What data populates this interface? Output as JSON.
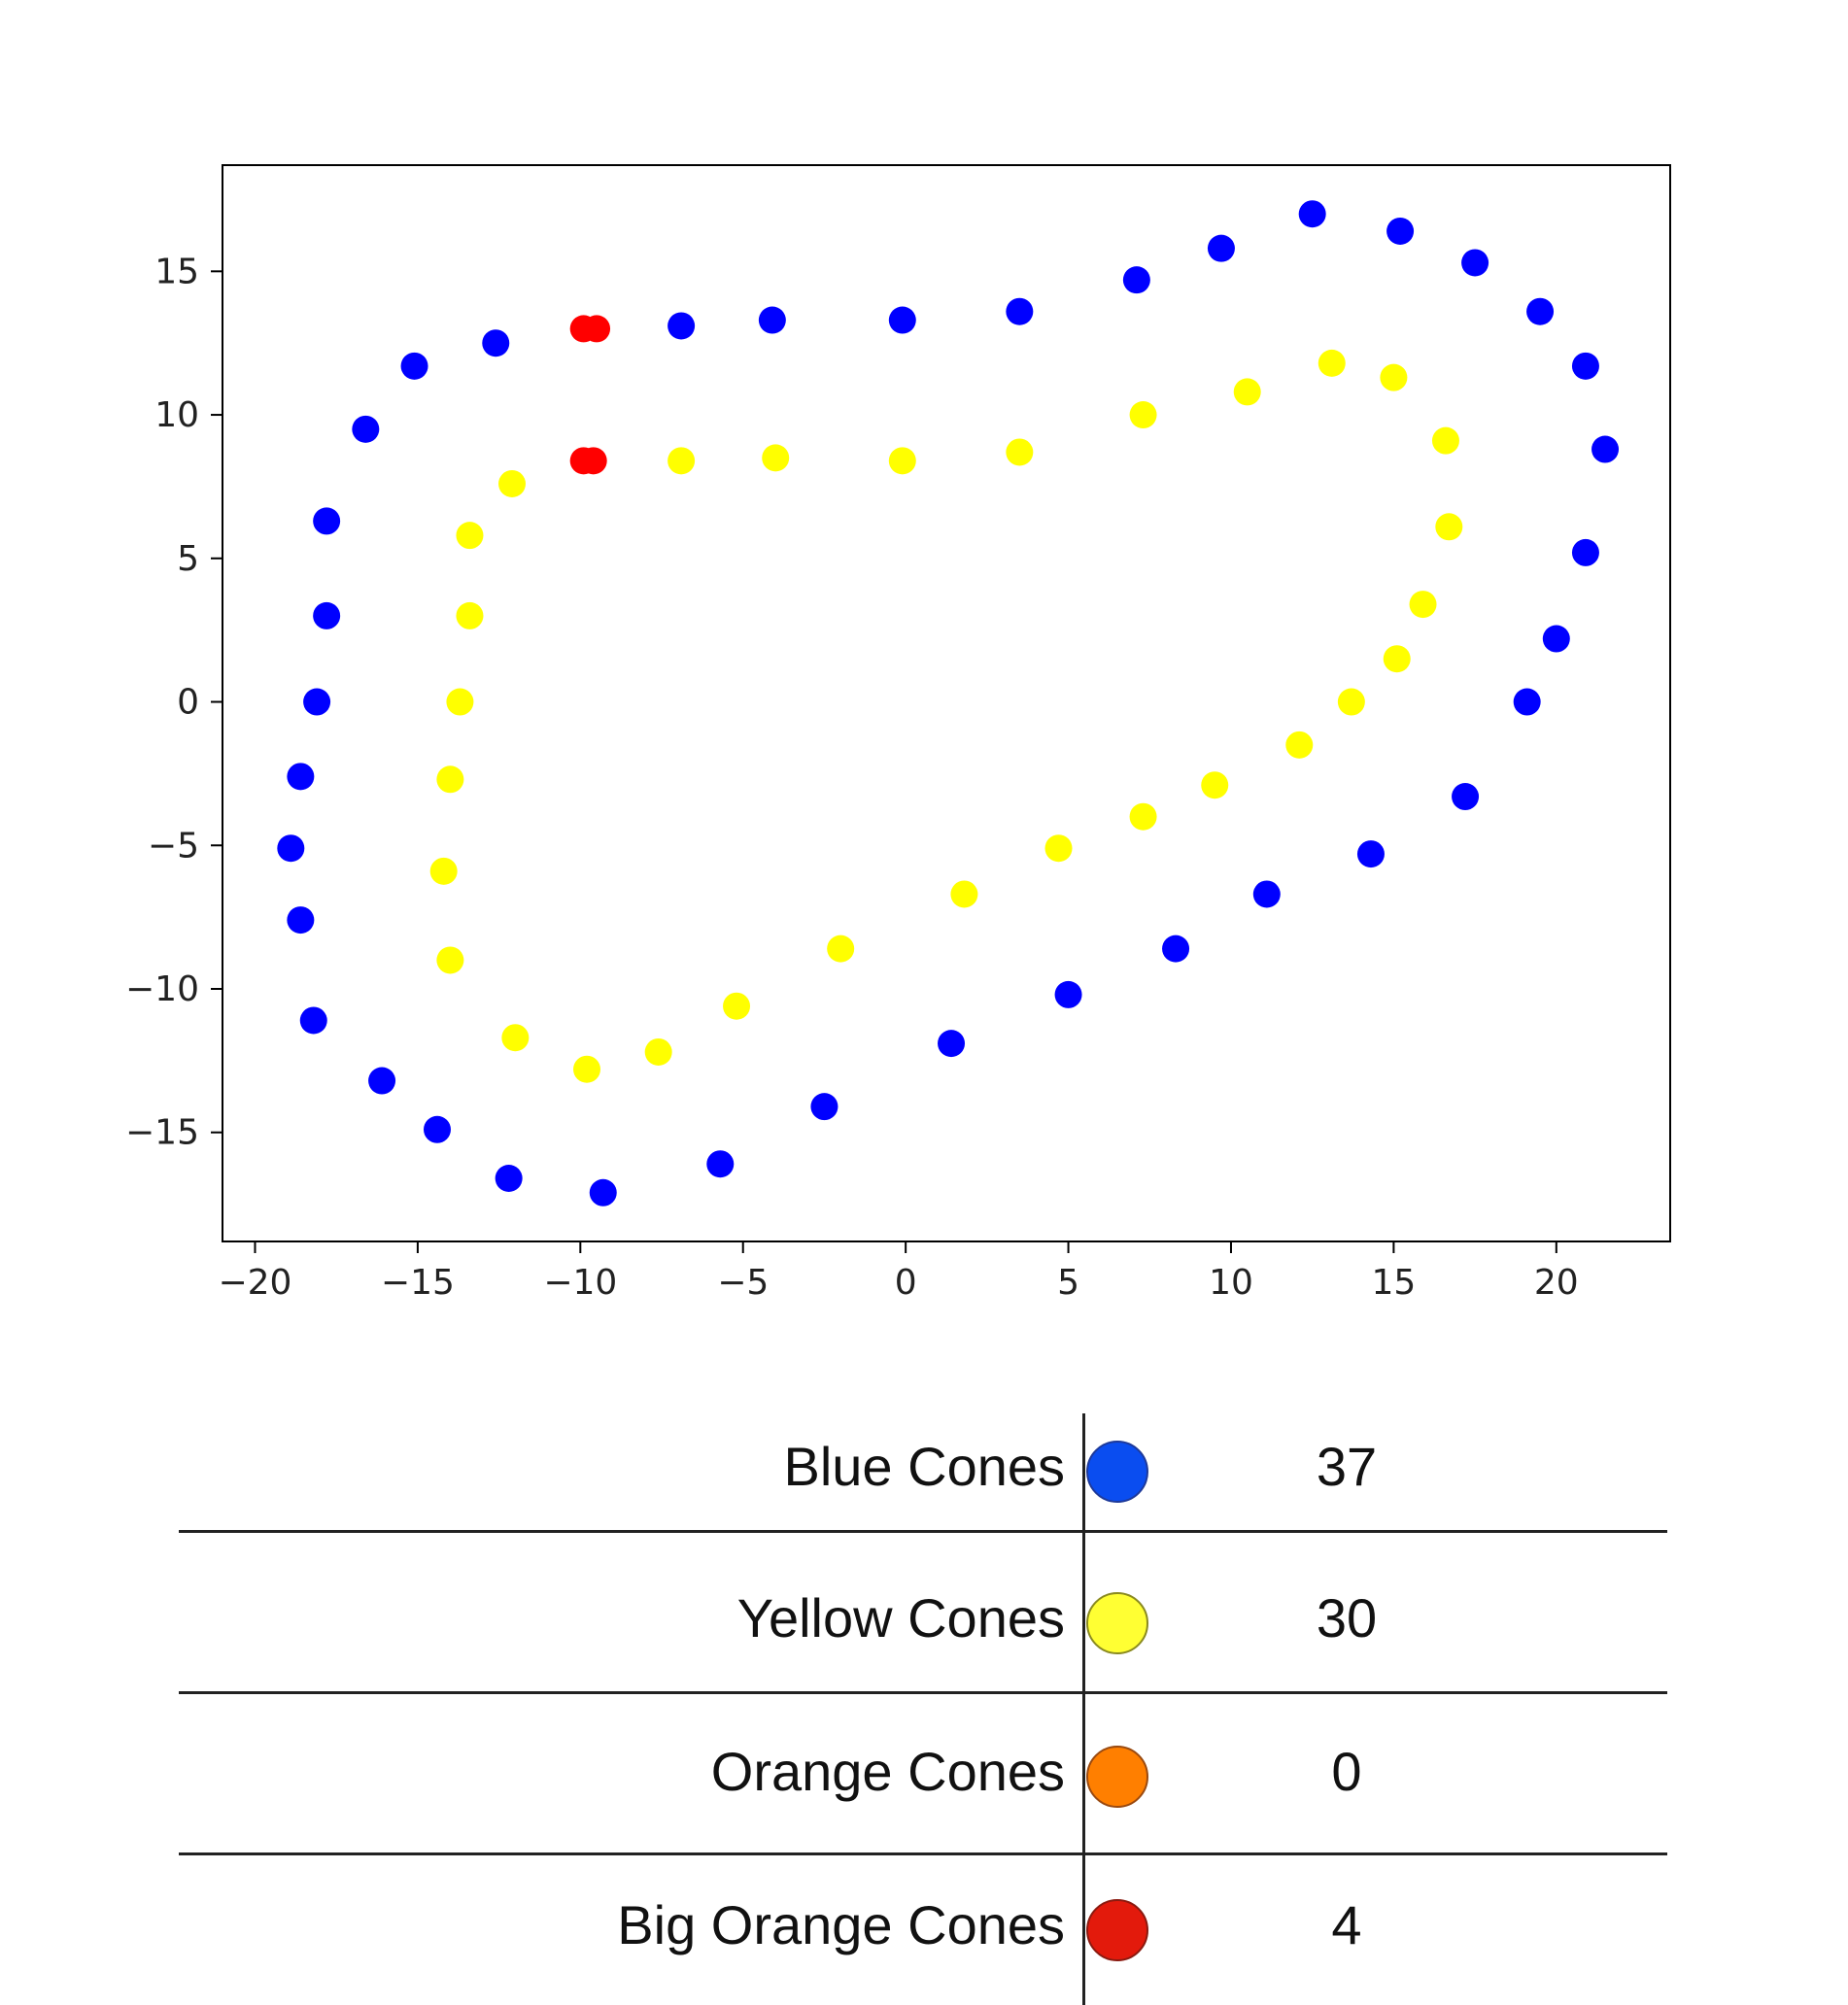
{
  "chart_data": {
    "type": "scatter",
    "title": "",
    "xlabel": "",
    "ylabel": "",
    "xlim": [
      -21,
      23.5
    ],
    "ylim": [
      -18.8,
      18.7
    ],
    "xticks": [
      -20,
      -15,
      -10,
      -5,
      0,
      5,
      10,
      15,
      20
    ],
    "yticks": [
      -15,
      -10,
      -5,
      0,
      5,
      10,
      15
    ],
    "xtick_labels": [
      "−20",
      "−15",
      "−10",
      "−5",
      "0",
      "5",
      "10",
      "15",
      "20"
    ],
    "ytick_labels": [
      "−15",
      "−10",
      "−5",
      "0",
      "5",
      "10",
      "15"
    ],
    "grid": false,
    "series": [
      {
        "color": "#0000ff",
        "points": [
          [
            -12.6,
            12.5
          ],
          [
            -15.1,
            11.7
          ],
          [
            -16.6,
            9.5
          ],
          [
            -17.8,
            6.3
          ],
          [
            -17.8,
            3.0
          ],
          [
            -18.1,
            0.0
          ],
          [
            -18.6,
            -2.6
          ],
          [
            -18.9,
            -5.1
          ],
          [
            -18.6,
            -7.6
          ],
          [
            -18.2,
            -11.1
          ],
          [
            -16.1,
            -13.2
          ],
          [
            -14.4,
            -14.9
          ],
          [
            -12.2,
            -16.6
          ],
          [
            -9.3,
            -17.1
          ],
          [
            -5.7,
            -16.1
          ],
          [
            -2.5,
            -14.1
          ],
          [
            1.4,
            -11.9
          ],
          [
            5.0,
            -10.2
          ],
          [
            8.3,
            -8.6
          ],
          [
            11.1,
            -6.7
          ],
          [
            14.3,
            -5.3
          ],
          [
            17.2,
            -3.3
          ],
          [
            19.1,
            0.0
          ],
          [
            20.0,
            2.2
          ],
          [
            20.9,
            5.2
          ],
          [
            21.5,
            8.8
          ],
          [
            20.9,
            11.7
          ],
          [
            19.5,
            13.6
          ],
          [
            17.5,
            15.3
          ],
          [
            15.2,
            16.4
          ],
          [
            12.5,
            17.0
          ],
          [
            9.7,
            15.8
          ],
          [
            7.1,
            14.7
          ],
          [
            3.5,
            13.6
          ],
          [
            -0.1,
            13.3
          ],
          [
            -4.1,
            13.3
          ],
          [
            -6.9,
            13.1
          ]
        ]
      },
      {
        "color": "#ffff00",
        "points": [
          [
            -12.1,
            7.6
          ],
          [
            -13.4,
            5.8
          ],
          [
            -13.4,
            3.0
          ],
          [
            -13.7,
            0.0
          ],
          [
            -14.0,
            -2.7
          ],
          [
            -14.2,
            -5.9
          ],
          [
            -14.0,
            -9.0
          ],
          [
            -12.0,
            -11.7
          ],
          [
            -9.8,
            -12.8
          ],
          [
            -7.6,
            -12.2
          ],
          [
            -5.2,
            -10.6
          ],
          [
            -2.0,
            -8.6
          ],
          [
            1.8,
            -6.7
          ],
          [
            4.7,
            -5.1
          ],
          [
            7.3,
            -4.0
          ],
          [
            9.5,
            -2.9
          ],
          [
            12.1,
            -1.5
          ],
          [
            13.7,
            0.0
          ],
          [
            15.1,
            1.5
          ],
          [
            15.9,
            3.4
          ],
          [
            16.7,
            6.1
          ],
          [
            16.6,
            9.1
          ],
          [
            15.0,
            11.3
          ],
          [
            13.1,
            11.8
          ],
          [
            10.5,
            10.8
          ],
          [
            7.3,
            10.0
          ],
          [
            3.5,
            8.7
          ],
          [
            -0.1,
            8.4
          ],
          [
            -4.0,
            8.5
          ],
          [
            -6.9,
            8.4
          ]
        ]
      },
      {
        "color": "#ff0000",
        "points": [
          [
            -9.9,
            13.0
          ],
          [
            -9.5,
            13.0
          ],
          [
            -9.9,
            8.4
          ],
          [
            -9.6,
            8.4
          ]
        ]
      }
    ]
  },
  "legend_table": {
    "rows": [
      {
        "label": "Blue Cones",
        "count": "37",
        "color": "#0a4df0",
        "border": "#1e3a9a"
      },
      {
        "label": "Yellow Cones",
        "count": "30",
        "color": "#ffff33",
        "border": "#8a8a20"
      },
      {
        "label": "Orange Cones",
        "count": "0",
        "color": "#ff7f00",
        "border": "#9a4a10"
      },
      {
        "label": "Big Orange Cones",
        "count": "4",
        "color": "#e31a0c",
        "border": "#8a1a10"
      }
    ]
  }
}
